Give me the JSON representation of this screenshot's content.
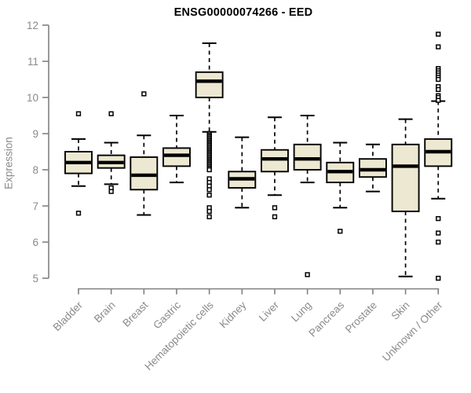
{
  "chart_data": {
    "type": "boxplot",
    "title": "ENSG00000074266 - EED",
    "xlabel": "",
    "ylabel": "Expression",
    "ylim": [
      5,
      12
    ],
    "yticks": [
      5,
      6,
      7,
      8,
      9,
      10,
      11,
      12
    ],
    "grid": false,
    "legend": "none",
    "categories": [
      "Bladder",
      "Brain",
      "Breast",
      "Gastric",
      "Hematopoietic cells",
      "Kidney",
      "Liver",
      "Lung",
      "Pancreas",
      "Prostate",
      "Skin",
      "Unknown / Other"
    ],
    "series": [
      {
        "category": "Bladder",
        "whisker_low": 7.55,
        "q1": 7.9,
        "median": 8.2,
        "q3": 8.5,
        "whisker_high": 8.85,
        "outliers": [
          9.55,
          6.8
        ]
      },
      {
        "category": "Brain",
        "whisker_low": 7.6,
        "q1": 8.05,
        "median": 8.2,
        "q3": 8.4,
        "whisker_high": 8.75,
        "outliers": [
          9.55,
          7.5,
          7.4
        ]
      },
      {
        "category": "Breast",
        "whisker_low": 6.75,
        "q1": 7.45,
        "median": 7.85,
        "q3": 8.35,
        "whisker_high": 8.95,
        "outliers": [
          10.1
        ]
      },
      {
        "category": "Gastric",
        "whisker_low": 7.65,
        "q1": 8.1,
        "median": 8.4,
        "q3": 8.6,
        "whisker_high": 9.5,
        "outliers": []
      },
      {
        "category": "Hematopoietic cells",
        "whisker_low": 9.05,
        "q1": 10.0,
        "median": 10.45,
        "q3": 10.7,
        "whisker_high": 11.5,
        "outliers": [
          9.0,
          8.96,
          8.92,
          8.88,
          8.84,
          8.8,
          8.76,
          8.72,
          8.68,
          8.64,
          8.6,
          8.56,
          8.52,
          8.48,
          8.44,
          8.4,
          8.36,
          8.32,
          8.28,
          8.24,
          8.2,
          8.16,
          8.12,
          8.08,
          8.04,
          8.0,
          7.75,
          7.65,
          7.55,
          7.45,
          7.3,
          6.95,
          6.85,
          6.7
        ]
      },
      {
        "category": "Kidney",
        "whisker_low": 6.95,
        "q1": 7.5,
        "median": 7.75,
        "q3": 7.95,
        "whisker_high": 8.9,
        "outliers": []
      },
      {
        "category": "Liver",
        "whisker_low": 7.3,
        "q1": 7.95,
        "median": 8.3,
        "q3": 8.55,
        "whisker_high": 9.45,
        "outliers": [
          6.95,
          6.7
        ]
      },
      {
        "category": "Lung",
        "whisker_low": 7.65,
        "q1": 8.0,
        "median": 8.3,
        "q3": 8.7,
        "whisker_high": 9.5,
        "outliers": [
          5.1
        ]
      },
      {
        "category": "Pancreas",
        "whisker_low": 6.95,
        "q1": 7.65,
        "median": 7.95,
        "q3": 8.2,
        "whisker_high": 8.75,
        "outliers": [
          6.3
        ]
      },
      {
        "category": "Prostate",
        "whisker_low": 7.4,
        "q1": 7.8,
        "median": 8.0,
        "q3": 8.3,
        "whisker_high": 8.7,
        "outliers": []
      },
      {
        "category": "Skin",
        "whisker_low": 5.05,
        "q1": 6.85,
        "median": 8.1,
        "q3": 8.7,
        "whisker_high": 9.4,
        "outliers": []
      },
      {
        "category": "Unknown / Other",
        "whisker_low": 7.2,
        "q1": 8.1,
        "median": 8.5,
        "q3": 8.85,
        "whisker_high": 9.9,
        "outliers": [
          11.75,
          11.4,
          10.8,
          10.74,
          10.68,
          10.62,
          10.56,
          10.5,
          10.3,
          10.22,
          10.05,
          10.0,
          9.92,
          6.65,
          6.25,
          6.0,
          5.0
        ]
      }
    ],
    "colors": {
      "box_fill": "#ede8d1",
      "box_stroke": "#000000",
      "median": "#000000",
      "whisker": "#000000",
      "outlier_stroke": "#000000",
      "axis": "#808080",
      "tick_label": "#8a8a8a",
      "title": "#000000"
    }
  }
}
